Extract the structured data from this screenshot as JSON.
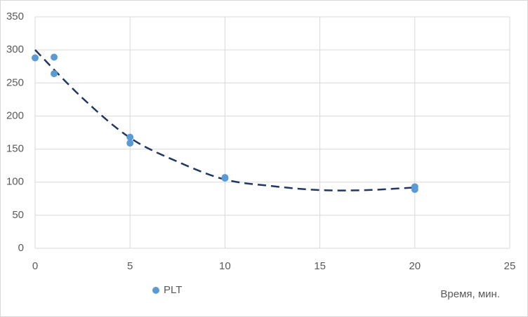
{
  "chart_data": {
    "type": "scatter",
    "x_label": "Время, мин.",
    "series": [
      {
        "name": "PLT",
        "color": "#5b9bd5",
        "x": [
          0,
          1,
          1,
          5,
          5,
          10,
          10,
          20,
          20
        ],
        "values": [
          288,
          289,
          264,
          168,
          159,
          107,
          106,
          93,
          89
        ]
      }
    ],
    "trendline": {
      "color": "#1f3864",
      "dashed": true,
      "x": [
        0,
        2.5,
        5,
        7.5,
        10,
        12.5,
        15,
        17.5,
        20
      ],
      "values": [
        300,
        227,
        167,
        131,
        104,
        94,
        88,
        88,
        92
      ]
    },
    "xlim": [
      0,
      25
    ],
    "xticks": [
      0,
      5,
      10,
      15,
      20,
      25
    ],
    "ylim": [
      0,
      350
    ],
    "yticks": [
      0,
      50,
      100,
      150,
      200,
      250,
      300,
      350
    ],
    "grid": true,
    "legend": "bottom-left"
  }
}
